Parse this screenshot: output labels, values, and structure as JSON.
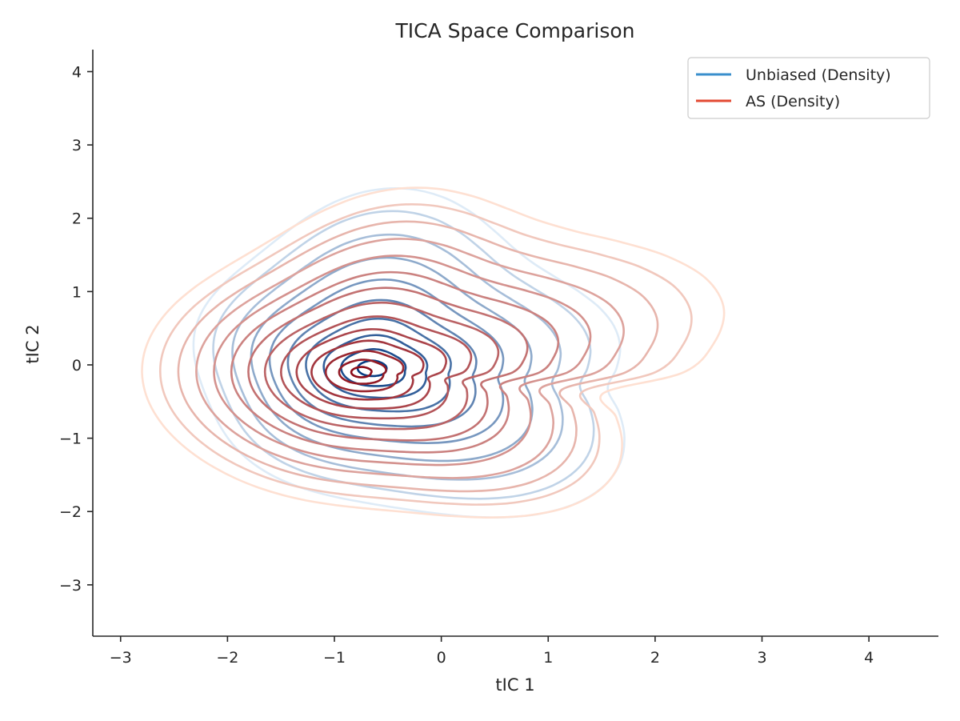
{
  "chart_data": {
    "type": "density-contour",
    "title": "TICA Space Comparison",
    "xlabel": "tIC 1",
    "ylabel": "tIC 2",
    "xlim": [
      -3.26,
      4.65
    ],
    "ylim": [
      -3.7,
      4.3
    ],
    "xticks": [
      "−3",
      "−2",
      "−1",
      "0",
      "1",
      "2",
      "3",
      "4"
    ],
    "yticks": [
      "−3",
      "−2",
      "−1",
      "0",
      "1",
      "2",
      "3",
      "4"
    ],
    "xtick_values": [
      -3,
      -2,
      -1,
      0,
      1,
      2,
      3,
      4
    ],
    "ytick_values": [
      -3,
      -2,
      -1,
      0,
      1,
      2,
      3,
      4
    ],
    "grid": false,
    "legend_position": "top-right",
    "series": [
      {
        "name": "Unbiased (Density)",
        "color": "#3a8fcc",
        "colormap": "Blues",
        "center": [
          -0.65,
          -0.05
        ],
        "peak_region": [
          [
            -0.65,
            -0.05
          ]
        ],
        "extent_x": [
          -2.3,
          2.4
        ],
        "extent_y": [
          -2.55,
          2.75
        ],
        "levels": 10
      },
      {
        "name": "AS (Density)",
        "color": "#e34a33",
        "colormap": "Reds",
        "center": [
          -0.75,
          -0.1
        ],
        "peak_region": [
          [
            -0.75,
            -0.1
          ]
        ],
        "extent_x": [
          -2.55,
          3.15
        ],
        "extent_y": [
          -2.55,
          2.7
        ],
        "levels": 14
      }
    ]
  }
}
